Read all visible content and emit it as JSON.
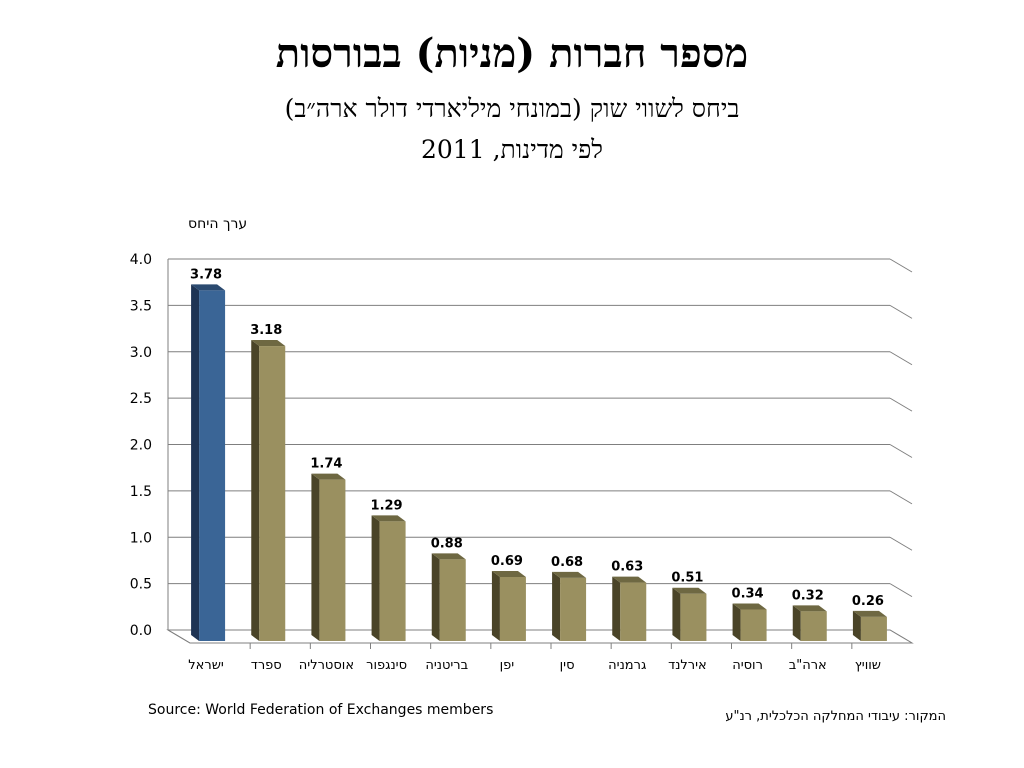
{
  "title": "מספר חברות (מניות) בבורסות",
  "subtitle_line1": "ביחס לשווי שוק (במונחי מיליארדי דולר ארה״ב)",
  "subtitle_line2": "לפי מדינות, 2011",
  "source_en": "Source: World Federation of Exchanges members",
  "source_he": "המקור: עיבודי המחלקה הכלכלית, רנ\"ע",
  "colors": {
    "highlight_bar": "#3A6596",
    "highlight_bar_side": "#1E3454",
    "highlight_bar_top": "#2B4A70",
    "bar": "#9A9060",
    "bar_side": "#4A4428",
    "bar_top": "#6E6842",
    "grid": "#7F7F7F"
  },
  "chart_data": {
    "type": "bar",
    "title": "מספר חברות (מניות) בבורסות",
    "ylabel": "ערך היחס",
    "xlabel": "",
    "ylim": [
      0,
      4.0
    ],
    "yticks": [
      "0.0",
      "0.5",
      "1.0",
      "1.5",
      "2.0",
      "2.5",
      "3.0",
      "3.5",
      "4.0"
    ],
    "categories": [
      "ישראל",
      "ספרד",
      "אוסטרליה",
      "סינגפור",
      "בריטניה",
      "יפן",
      "סין",
      "גרמניה",
      "אירלנד",
      "רוסיה",
      "ארה\"ב",
      "שוויץ"
    ],
    "values": [
      3.78,
      3.18,
      1.74,
      1.29,
      0.88,
      0.69,
      0.68,
      0.63,
      0.51,
      0.34,
      0.32,
      0.26
    ],
    "value_labels": [
      "3.78",
      "3.18",
      "1.74",
      "1.29",
      "0.88",
      "0.69",
      "0.68",
      "0.63",
      "0.51",
      "0.34",
      "0.32",
      "0.26"
    ],
    "highlight_index": 0,
    "grid": true,
    "legend": "none"
  }
}
